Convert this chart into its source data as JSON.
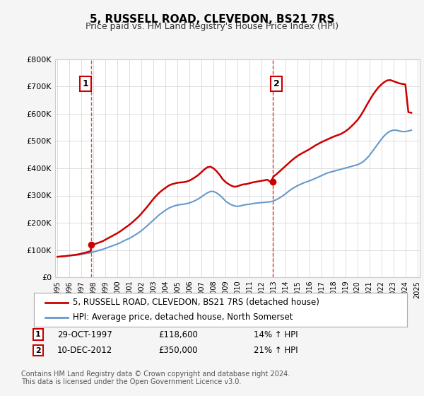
{
  "title": "5, RUSSELL ROAD, CLEVEDON, BS21 7RS",
  "subtitle": "Price paid vs. HM Land Registry's House Price Index (HPI)",
  "legend_line1": "5, RUSSELL ROAD, CLEVEDON, BS21 7RS (detached house)",
  "legend_line2": "HPI: Average price, detached house, North Somerset",
  "annotation1_label": "1",
  "annotation1_date": "29-OCT-1997",
  "annotation1_price": "£118,600",
  "annotation1_hpi": "14% ↑ HPI",
  "annotation2_label": "2",
  "annotation2_date": "10-DEC-2012",
  "annotation2_price": "£350,000",
  "annotation2_hpi": "21% ↑ HPI",
  "footnote": "Contains HM Land Registry data © Crown copyright and database right 2024.\nThis data is licensed under the Open Government Licence v3.0.",
  "price_color": "#cc0000",
  "hpi_color": "#6699cc",
  "background_color": "#f5f5f5",
  "plot_bg_color": "#ffffff",
  "grid_color": "#dddddd",
  "ylim": [
    0,
    800000
  ],
  "yticks": [
    0,
    100000,
    200000,
    300000,
    400000,
    500000,
    600000,
    700000,
    800000
  ],
  "sale1_year": 1997.83,
  "sale1_price": 118600,
  "sale2_year": 2012.94,
  "sale2_price": 350000,
  "hpi_years": [
    1995,
    1995.25,
    1995.5,
    1995.75,
    1996,
    1996.25,
    1996.5,
    1996.75,
    1997,
    1997.25,
    1997.5,
    1997.75,
    1998,
    1998.25,
    1998.5,
    1998.75,
    1999,
    1999.25,
    1999.5,
    1999.75,
    2000,
    2000.25,
    2000.5,
    2000.75,
    2001,
    2001.25,
    2001.5,
    2001.75,
    2002,
    2002.25,
    2002.5,
    2002.75,
    2003,
    2003.25,
    2003.5,
    2003.75,
    2004,
    2004.25,
    2004.5,
    2004.75,
    2005,
    2005.25,
    2005.5,
    2005.75,
    2006,
    2006.25,
    2006.5,
    2006.75,
    2007,
    2007.25,
    2007.5,
    2007.75,
    2008,
    2008.25,
    2008.5,
    2008.75,
    2009,
    2009.25,
    2009.5,
    2009.75,
    2010,
    2010.25,
    2010.5,
    2010.75,
    2011,
    2011.25,
    2011.5,
    2011.75,
    2012,
    2012.25,
    2012.5,
    2012.75,
    2013,
    2013.25,
    2013.5,
    2013.75,
    2014,
    2014.25,
    2014.5,
    2014.75,
    2015,
    2015.25,
    2015.5,
    2015.75,
    2016,
    2016.25,
    2016.5,
    2016.75,
    2017,
    2017.25,
    2017.5,
    2017.75,
    2018,
    2018.25,
    2018.5,
    2018.75,
    2019,
    2019.25,
    2019.5,
    2019.75,
    2020,
    2020.25,
    2020.5,
    2020.75,
    2021,
    2021.25,
    2021.5,
    2021.75,
    2022,
    2022.25,
    2022.5,
    2022.75,
    2023,
    2023.25,
    2023.5,
    2023.75,
    2024,
    2024.25,
    2024.5
  ],
  "hpi_values": [
    75000,
    76000,
    77000,
    78000,
    79000,
    80000,
    81000,
    82000,
    84000,
    86000,
    88000,
    90000,
    93000,
    96000,
    99000,
    102000,
    106000,
    110000,
    114000,
    118000,
    122000,
    127000,
    133000,
    138000,
    143000,
    149000,
    156000,
    163000,
    171000,
    180000,
    190000,
    200000,
    210000,
    220000,
    230000,
    238000,
    246000,
    253000,
    258000,
    262000,
    265000,
    267000,
    268000,
    270000,
    273000,
    277000,
    282000,
    288000,
    295000,
    303000,
    310000,
    315000,
    315000,
    310000,
    302000,
    292000,
    280000,
    272000,
    266000,
    262000,
    260000,
    262000,
    265000,
    267000,
    268000,
    270000,
    272000,
    273000,
    274000,
    275000,
    276000,
    277000,
    280000,
    285000,
    291000,
    298000,
    306000,
    315000,
    323000,
    330000,
    336000,
    341000,
    346000,
    350000,
    354000,
    358000,
    363000,
    368000,
    373000,
    378000,
    383000,
    386000,
    389000,
    392000,
    395000,
    398000,
    401000,
    404000,
    407000,
    410000,
    413000,
    418000,
    425000,
    435000,
    447000,
    462000,
    477000,
    492000,
    507000,
    520000,
    530000,
    537000,
    540000,
    540000,
    537000,
    535000,
    535000,
    537000,
    540000
  ],
  "price_years": [
    1995,
    1995.25,
    1995.5,
    1995.75,
    1996,
    1996.25,
    1996.5,
    1996.75,
    1997,
    1997.25,
    1997.5,
    1997.75,
    1997.83,
    1998,
    1998.25,
    1998.5,
    1998.75,
    1999,
    1999.25,
    1999.5,
    1999.75,
    2000,
    2000.25,
    2000.5,
    2000.75,
    2001,
    2001.25,
    2001.5,
    2001.75,
    2002,
    2002.25,
    2002.5,
    2002.75,
    2003,
    2003.25,
    2003.5,
    2003.75,
    2004,
    2004.25,
    2004.5,
    2004.75,
    2005,
    2005.25,
    2005.5,
    2005.75,
    2006,
    2006.25,
    2006.5,
    2006.75,
    2007,
    2007.25,
    2007.5,
    2007.75,
    2008,
    2008.25,
    2008.5,
    2008.75,
    2009,
    2009.25,
    2009.5,
    2009.75,
    2010,
    2010.25,
    2010.5,
    2010.75,
    2011,
    2011.25,
    2011.5,
    2011.75,
    2012,
    2012.25,
    2012.5,
    2012.75,
    2012.94,
    2013,
    2013.25,
    2013.5,
    2013.75,
    2014,
    2014.25,
    2014.5,
    2014.75,
    2015,
    2015.25,
    2015.5,
    2015.75,
    2016,
    2016.25,
    2016.5,
    2016.75,
    2017,
    2017.25,
    2017.5,
    2017.75,
    2018,
    2018.25,
    2018.5,
    2018.75,
    2019,
    2019.25,
    2019.5,
    2019.75,
    2020,
    2020.25,
    2020.5,
    2020.75,
    2021,
    2021.25,
    2021.5,
    2021.75,
    2022,
    2022.25,
    2022.5,
    2022.75,
    2023,
    2023.25,
    2023.5,
    2023.75,
    2024,
    2024.25,
    2024.5
  ],
  "price_values": [
    75000,
    76000,
    77000,
    78000,
    79500,
    81000,
    82500,
    84000,
    86800,
    89600,
    92400,
    95200,
    118600,
    120000,
    124000,
    128000,
    132000,
    138000,
    144000,
    150000,
    156000,
    162000,
    169000,
    177000,
    185000,
    193000,
    202000,
    212000,
    222000,
    234000,
    247000,
    260000,
    274000,
    288000,
    300000,
    311000,
    320000,
    328000,
    336000,
    341000,
    344000,
    347000,
    348000,
    349000,
    351000,
    355000,
    361000,
    368000,
    376000,
    386000,
    396000,
    404000,
    406000,
    400000,
    390000,
    377000,
    361000,
    350000,
    342000,
    336000,
    332000,
    334000,
    338000,
    341000,
    342000,
    345000,
    348000,
    350000,
    352000,
    354000,
    356000,
    358000,
    350000,
    363000,
    370000,
    378000,
    388000,
    398000,
    408000,
    418000,
    428000,
    437000,
    445000,
    452000,
    458000,
    464000,
    470000,
    477000,
    484000,
    490000,
    496000,
    501000,
    506000,
    511000,
    516000,
    520000,
    524000,
    529000,
    536000,
    544000,
    554000,
    565000,
    577000,
    592000,
    610000,
    630000,
    649000,
    667000,
    683000,
    697000,
    708000,
    717000,
    723000,
    724000,
    720000,
    716000,
    712000,
    710000,
    708000,
    606000,
    604000
  ]
}
